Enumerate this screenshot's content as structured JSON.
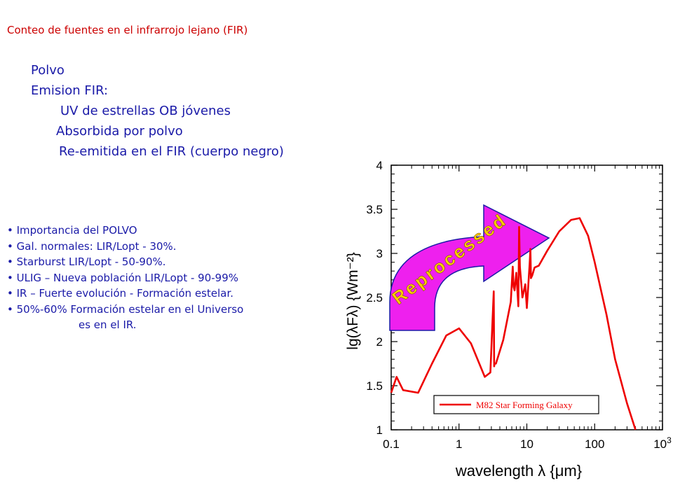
{
  "slide": {
    "title": "Conteo de fuentes en el infrarrojo lejano (FIR)",
    "outline": [
      {
        "text": "Polvo",
        "indent": 0
      },
      {
        "text": "Emision FIR:",
        "indent": 0
      },
      {
        "text": "UV de estrellas OB jóvenes",
        "indent": 1
      },
      {
        "text": "Absorbida por polvo",
        "indent": 2
      },
      {
        "text": "Re-emitida en el FIR (cuerpo negro)",
        "indent": 3
      }
    ],
    "bullets": [
      "Importancia del POLVO",
      "Gal. normales: LIR/Lopt - 30%.",
      "Starburst  LIR/Lopt - 50-90%.",
      "ULIG – Nueva población LIR/Lopt - 90-99%",
      "IR – Fuerte evolución -  Formación estelar.",
      "50%-60% Formación estelar en el Universo"
    ],
    "bullet_continuation": "es en el  IR."
  },
  "chart_data": {
    "type": "line",
    "xscale": "log",
    "xlim": [
      0.1,
      1000
    ],
    "ylim": [
      1,
      4
    ],
    "xlabel": "wavelength  λ  {μm}",
    "ylabel": "lg(λFλ) {Wm⁻²}",
    "x_ticks": [
      0.1,
      1,
      10,
      100,
      1000
    ],
    "x_tick_labels": [
      "0.1",
      "1",
      "10",
      "100",
      "10³"
    ],
    "y_ticks": [
      1,
      1.5,
      2,
      2.5,
      3,
      3.5,
      4
    ],
    "y_tick_labels": [
      "1",
      "1.5",
      "2",
      "2.5",
      "3",
      "3.5",
      "4"
    ],
    "grid": false,
    "legend_position": "bottom-right",
    "annotation": "Reprocessed",
    "series": [
      {
        "name": "M82 Star Forming Galaxy",
        "color": "#ee0000",
        "x": [
          0.1,
          0.12,
          0.15,
          0.25,
          0.4,
          0.65,
          1.0,
          1.5,
          2.4,
          2.9,
          3.25,
          3.3,
          3.35,
          3.5,
          4.5,
          5.8,
          6.2,
          6.4,
          6.6,
          7.0,
          7.5,
          7.7,
          7.9,
          8.1,
          8.6,
          9.5,
          10.0,
          11.0,
          11.3,
          11.5,
          12.0,
          13.0,
          15.0,
          20.0,
          30.0,
          45.0,
          60.0,
          80.0,
          100.0,
          150.0,
          200.0,
          300.0,
          400.0
        ],
        "y": [
          1.42,
          1.6,
          1.45,
          1.42,
          1.75,
          2.07,
          2.15,
          1.98,
          1.6,
          1.65,
          2.57,
          1.72,
          1.75,
          1.75,
          2.02,
          2.45,
          2.85,
          2.62,
          2.58,
          2.78,
          2.4,
          3.3,
          2.85,
          2.75,
          2.5,
          2.65,
          2.38,
          2.88,
          3.05,
          2.72,
          2.75,
          2.84,
          2.86,
          3.03,
          3.25,
          3.38,
          3.4,
          3.2,
          2.9,
          2.3,
          1.8,
          1.3,
          1.0
        ]
      }
    ]
  },
  "colors": {
    "title": "#cc0000",
    "text": "#1a1aa8",
    "curve": "#ee0000",
    "arrow_fill": "#ee20ee",
    "arrow_stroke": "#1a1aa8",
    "annotation": "#ffcc00"
  }
}
